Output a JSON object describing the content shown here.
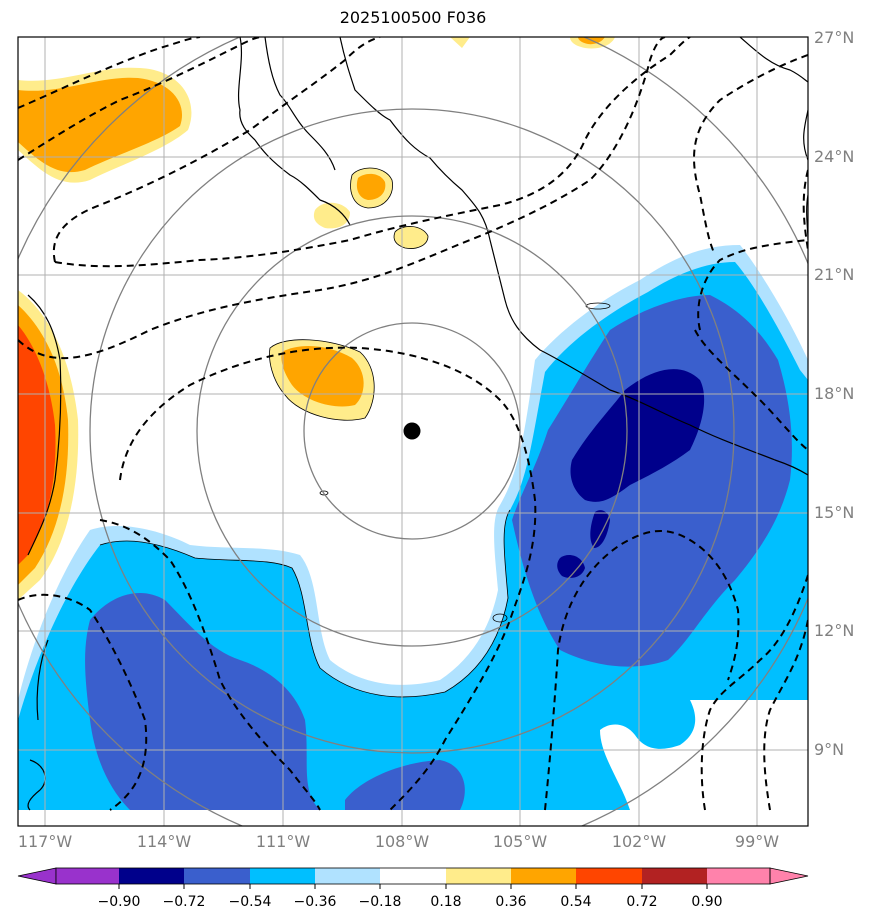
{
  "title": "2025100500 F036",
  "map": {
    "lat_labels": [
      "27°N",
      "24°N",
      "21°N",
      "18°N",
      "15°N",
      "12°N",
      "9°N"
    ],
    "lon_labels": [
      "117°W",
      "114°W",
      "111°W",
      "108°W",
      "105°W",
      "102°W",
      "99°W"
    ],
    "storm_center": {
      "lon": -107.8,
      "lat": 17.0
    },
    "range_rings": [
      "inner",
      "second",
      "third",
      "outer"
    ]
  },
  "colorbar": {
    "ticks": [
      "−0.90",
      "−0.72",
      "−0.54",
      "−0.36",
      "−0.18",
      "0.18",
      "0.36",
      "0.54",
      "0.72",
      "0.90"
    ],
    "colors": [
      "#9932cc",
      "#00008b",
      "#3a5fcd",
      "#00bfff",
      "#b0e2ff",
      "#ffffff",
      "#ffec8b",
      "#ffa500",
      "#ff4500",
      "#b22222",
      "#ff82ab"
    ]
  }
}
